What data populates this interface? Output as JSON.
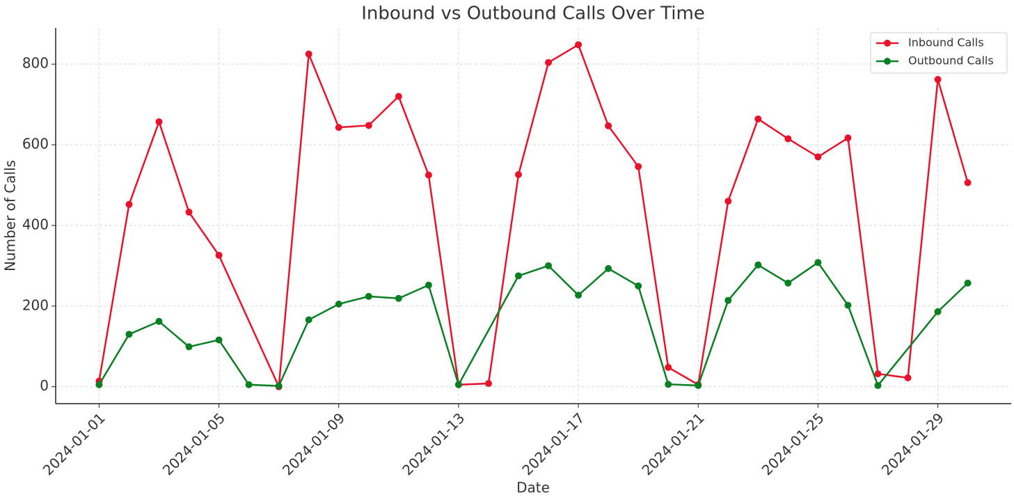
{
  "chart_data": {
    "type": "line",
    "title": "Inbound vs Outbound Calls Over Time",
    "xlabel": "Date",
    "ylabel": "Number of Calls",
    "ylim": [
      -42,
      890
    ],
    "yticks": [
      0,
      200,
      400,
      600,
      800
    ],
    "xticks": [
      "2024-01-01",
      "2024-01-05",
      "2024-01-09",
      "2024-01-13",
      "2024-01-17",
      "2024-01-21",
      "2024-01-25",
      "2024-01-29"
    ],
    "grid": true,
    "legend": "upper right",
    "series": [
      {
        "name": "Inbound Calls",
        "color": "#e8132b",
        "x": [
          "2024-01-01",
          "2024-01-02",
          "2024-01-03",
          "2024-01-04",
          "2024-01-05",
          "2024-01-07",
          "2024-01-08",
          "2024-01-09",
          "2024-01-10",
          "2024-01-11",
          "2024-01-12",
          "2024-01-13",
          "2024-01-14",
          "2024-01-15",
          "2024-01-16",
          "2024-01-17",
          "2024-01-18",
          "2024-01-19",
          "2024-01-20",
          "2024-01-21",
          "2024-01-22",
          "2024-01-23",
          "2024-01-24",
          "2024-01-25",
          "2024-01-26",
          "2024-01-27",
          "2024-01-28",
          "2024-01-29",
          "2024-01-30"
        ],
        "values": [
          14,
          452,
          657,
          433,
          326,
          0,
          825,
          643,
          648,
          720,
          525,
          5,
          8,
          526,
          804,
          848,
          647,
          546,
          48,
          5,
          460,
          664,
          615,
          570,
          617,
          32,
          22,
          762,
          506
        ]
      },
      {
        "name": "Outbound Calls",
        "color": "#0a7f22",
        "x": [
          "2024-01-01",
          "2024-01-02",
          "2024-01-03",
          "2024-01-04",
          "2024-01-05",
          "2024-01-06",
          "2024-01-07",
          "2024-01-08",
          "2024-01-09",
          "2024-01-10",
          "2024-01-11",
          "2024-01-12",
          "2024-01-13",
          "2024-01-15",
          "2024-01-16",
          "2024-01-17",
          "2024-01-18",
          "2024-01-19",
          "2024-01-20",
          "2024-01-21",
          "2024-01-22",
          "2024-01-23",
          "2024-01-24",
          "2024-01-25",
          "2024-01-26",
          "2024-01-27",
          "2024-01-29",
          "2024-01-30"
        ],
        "values": [
          5,
          130,
          162,
          99,
          116,
          5,
          2,
          166,
          205,
          224,
          219,
          252,
          5,
          275,
          300,
          227,
          293,
          250,
          6,
          3,
          214,
          302,
          257,
          308,
          202,
          3,
          186,
          257
        ]
      }
    ]
  }
}
